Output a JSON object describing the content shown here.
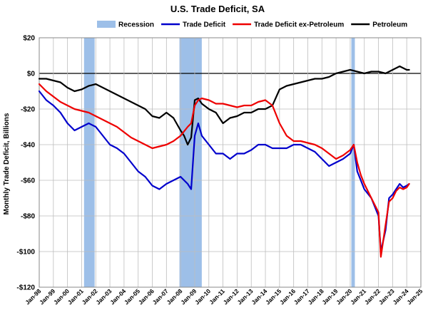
{
  "chart_data": {
    "type": "line",
    "title": "U.S. Trade Deficit, SA",
    "xlabel": "",
    "ylabel": "Monthly Trade Deficit, Billions",
    "ylim": [
      -120,
      20
    ],
    "yticks": [
      20,
      0,
      -20,
      -40,
      -60,
      -80,
      -100,
      -120
    ],
    "ytick_labels": [
      "$20",
      "$0",
      "-$20",
      "-$40",
      "-$60",
      "-$80",
      "-$100",
      "-$120"
    ],
    "xlim": [
      1998.0,
      2025.0
    ],
    "xtick_labels": [
      "Jan-98",
      "Jan-99",
      "Jan-00",
      "Jan-01",
      "Jan-02",
      "Jan-03",
      "Jan-04",
      "Jan-05",
      "Jan-06",
      "Jan-07",
      "Jan-08",
      "Jan-09",
      "Jan-10",
      "Jan-11",
      "Jan-12",
      "Jan-13",
      "Jan-14",
      "Jan-15",
      "Jan-16",
      "Jan-17",
      "Jan-18",
      "Jan-19",
      "Jan-20",
      "Jan-21",
      "Jan-22",
      "Jan-23",
      "Jan-24",
      "Jan-25"
    ],
    "grid": true,
    "legend_position": "top",
    "recessions": [
      {
        "start": 2001.17,
        "end": 2001.92
      },
      {
        "start": 2007.92,
        "end": 2009.5
      },
      {
        "start": 2020.08,
        "end": 2020.33
      }
    ],
    "series": [
      {
        "name": "Recession",
        "kind": "band",
        "color": "#9dbfe8"
      },
      {
        "name": "Trade Deficit",
        "color": "#0000cc",
        "x": [
          1998.0,
          1998.5,
          1999.0,
          1999.5,
          2000.0,
          2000.5,
          2001.0,
          2001.5,
          2002.0,
          2002.5,
          2003.0,
          2003.5,
          2004.0,
          2004.5,
          2005.0,
          2005.5,
          2006.0,
          2006.5,
          2007.0,
          2007.5,
          2008.0,
          2008.5,
          2008.75,
          2009.0,
          2009.25,
          2009.5,
          2010.0,
          2010.5,
          2011.0,
          2011.5,
          2012.0,
          2012.5,
          2013.0,
          2013.5,
          2014.0,
          2014.5,
          2015.0,
          2015.5,
          2016.0,
          2016.5,
          2017.0,
          2017.5,
          2018.0,
          2018.5,
          2019.0,
          2019.5,
          2020.0,
          2020.25,
          2020.5,
          2020.75,
          2021.0,
          2021.5,
          2022.0,
          2022.17,
          2022.5,
          2022.75,
          2023.0,
          2023.25,
          2023.5,
          2023.75,
          2024.0,
          2024.17
        ],
        "y": [
          -10,
          -15,
          -18,
          -22,
          -28,
          -32,
          -30,
          -28,
          -30,
          -35,
          -40,
          -42,
          -45,
          -50,
          -55,
          -58,
          -63,
          -65,
          -62,
          -60,
          -58,
          -62,
          -65,
          -35,
          -28,
          -35,
          -40,
          -45,
          -45,
          -48,
          -45,
          -45,
          -43,
          -40,
          -40,
          -42,
          -42,
          -42,
          -40,
          -40,
          -42,
          -44,
          -48,
          -52,
          -50,
          -48,
          -45,
          -40,
          -55,
          -60,
          -65,
          -70,
          -80,
          -100,
          -88,
          -70,
          -68,
          -65,
          -62,
          -64,
          -63,
          -62
        ]
      },
      {
        "name": "Trade Deficit ex-Petroleum",
        "color": "#ee0000",
        "x": [
          1998.0,
          1998.5,
          1999.0,
          1999.5,
          2000.0,
          2000.5,
          2001.0,
          2001.5,
          2002.0,
          2002.5,
          2003.0,
          2003.5,
          2004.0,
          2004.5,
          2005.0,
          2005.5,
          2006.0,
          2006.5,
          2007.0,
          2007.5,
          2008.0,
          2008.5,
          2008.75,
          2009.0,
          2009.25,
          2009.5,
          2010.0,
          2010.5,
          2011.0,
          2011.5,
          2012.0,
          2012.5,
          2013.0,
          2013.5,
          2014.0,
          2014.5,
          2015.0,
          2015.5,
          2016.0,
          2016.5,
          2017.0,
          2017.5,
          2018.0,
          2018.5,
          2019.0,
          2019.5,
          2020.0,
          2020.25,
          2020.5,
          2020.75,
          2021.0,
          2021.5,
          2022.0,
          2022.17,
          2022.5,
          2022.75,
          2023.0,
          2023.25,
          2023.5,
          2023.75,
          2024.0,
          2024.17
        ],
        "y": [
          -6,
          -10,
          -13,
          -16,
          -18,
          -20,
          -21,
          -22,
          -24,
          -26,
          -28,
          -30,
          -33,
          -36,
          -38,
          -40,
          -42,
          -41,
          -40,
          -38,
          -35,
          -30,
          -28,
          -18,
          -15,
          -14,
          -15,
          -17,
          -17,
          -18,
          -19,
          -18,
          -18,
          -16,
          -15,
          -18,
          -28,
          -35,
          -38,
          -38,
          -39,
          -40,
          -42,
          -45,
          -48,
          -46,
          -43,
          -40,
          -50,
          -57,
          -62,
          -70,
          -78,
          -103,
          -85,
          -72,
          -70,
          -66,
          -64,
          -65,
          -64,
          -62
        ]
      },
      {
        "name": "Petroleum",
        "color": "#000000",
        "x": [
          1998.0,
          1998.5,
          1999.0,
          1999.5,
          2000.0,
          2000.5,
          2001.0,
          2001.5,
          2002.0,
          2002.5,
          2003.0,
          2003.5,
          2004.0,
          2004.5,
          2005.0,
          2005.5,
          2006.0,
          2006.5,
          2007.0,
          2007.5,
          2008.0,
          2008.25,
          2008.5,
          2008.75,
          2009.0,
          2009.25,
          2009.5,
          2010.0,
          2010.5,
          2011.0,
          2011.5,
          2012.0,
          2012.5,
          2013.0,
          2013.5,
          2014.0,
          2014.5,
          2015.0,
          2015.5,
          2016.0,
          2016.5,
          2017.0,
          2017.5,
          2018.0,
          2018.5,
          2019.0,
          2019.5,
          2020.0,
          2020.5,
          2021.0,
          2021.5,
          2022.0,
          2022.5,
          2023.0,
          2023.5,
          2024.0,
          2024.17
        ],
        "y": [
          -3,
          -3,
          -4,
          -5,
          -8,
          -10,
          -9,
          -7,
          -6,
          -8,
          -10,
          -12,
          -14,
          -16,
          -18,
          -20,
          -24,
          -25,
          -22,
          -25,
          -32,
          -35,
          -40,
          -36,
          -15,
          -14,
          -17,
          -20,
          -22,
          -28,
          -25,
          -24,
          -22,
          -22,
          -20,
          -20,
          -18,
          -9,
          -7,
          -6,
          -5,
          -4,
          -3,
          -3,
          -2,
          0,
          1,
          2,
          1,
          0,
          1,
          1,
          0,
          2,
          4,
          2,
          2
        ]
      }
    ]
  }
}
